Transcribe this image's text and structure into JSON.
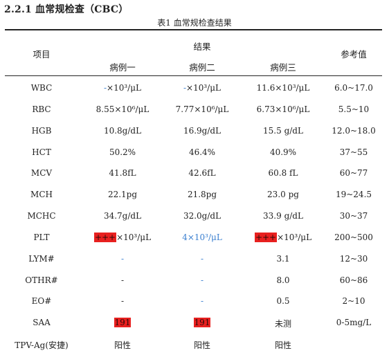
{
  "section": {
    "title": "2.2.1  血常规检查（CBC）"
  },
  "table": {
    "caption": "表1  血常规检查结果",
    "headers": {
      "item": "项目",
      "results": "结果",
      "case1": "病例一",
      "case2": "病例二",
      "case3": "病例三",
      "reference": "参考值"
    },
    "rows": [
      {
        "item": "WBC",
        "c1": "-×10³/μL",
        "c2": "-×10³/μL",
        "c3": "11.6×10³/μL",
        "ref": "6.0~17.0"
      },
      {
        "item": "RBC",
        "c1": "8.55×10⁶/μL",
        "c2": "7.77×10⁶/μL",
        "c3": "6.73×10⁶/μL",
        "ref": "5.5~10"
      },
      {
        "item": "HGB",
        "c1": "10.8g/dL",
        "c2": "16.9g/dL",
        "c3": "15.5 g/dL",
        "ref": "12.0~18.0"
      },
      {
        "item": "HCT",
        "c1": "50.2%",
        "c2": "46.4%",
        "c3": "40.9%",
        "ref": "37~55"
      },
      {
        "item": "MCV",
        "c1": "41.8fL",
        "c2": "42.6fL",
        "c3": "60.8 fL",
        "ref": "60~77"
      },
      {
        "item": "MCH",
        "c1": "22.1pg",
        "c2": "21.8pg",
        "c3": "23.0 pg",
        "ref": "19~24.5"
      },
      {
        "item": "MCHC",
        "c1": "34.7g/dL",
        "c2": "32.0g/dL",
        "c3": "33.9 g/dL",
        "ref": "30~37"
      },
      {
        "item": "PLT",
        "c1_hl": "+++",
        "c1_rest": "×10³/μL",
        "c2": "4×10³/μL",
        "c3_hl": "+++",
        "c3_rest": "×10³/μL",
        "ref": "200~500"
      },
      {
        "item": "LYM#",
        "c1": "-",
        "c2": "-",
        "c3": "3.1",
        "ref": "12~30"
      },
      {
        "item": "OTHR#",
        "c1": "-",
        "c2": "-",
        "c3": "8.0",
        "ref": "60~86"
      },
      {
        "item": "EO#",
        "c1": "-",
        "c2": "-",
        "c3": "0.5",
        "ref": "2~10"
      },
      {
        "item": "SAA",
        "c1_hl": "191",
        "c2_hl": "191",
        "c3": "未测",
        "ref": "0-5mg/L"
      },
      {
        "item": "TPV-Ag(安捷)",
        "c1": "阳性",
        "c2": "阳性",
        "c3": "阳性",
        "ref": ""
      }
    ]
  },
  "colors": {
    "highlight": "#e8201f",
    "dash": "#3a7fd0",
    "text": "#222222"
  }
}
